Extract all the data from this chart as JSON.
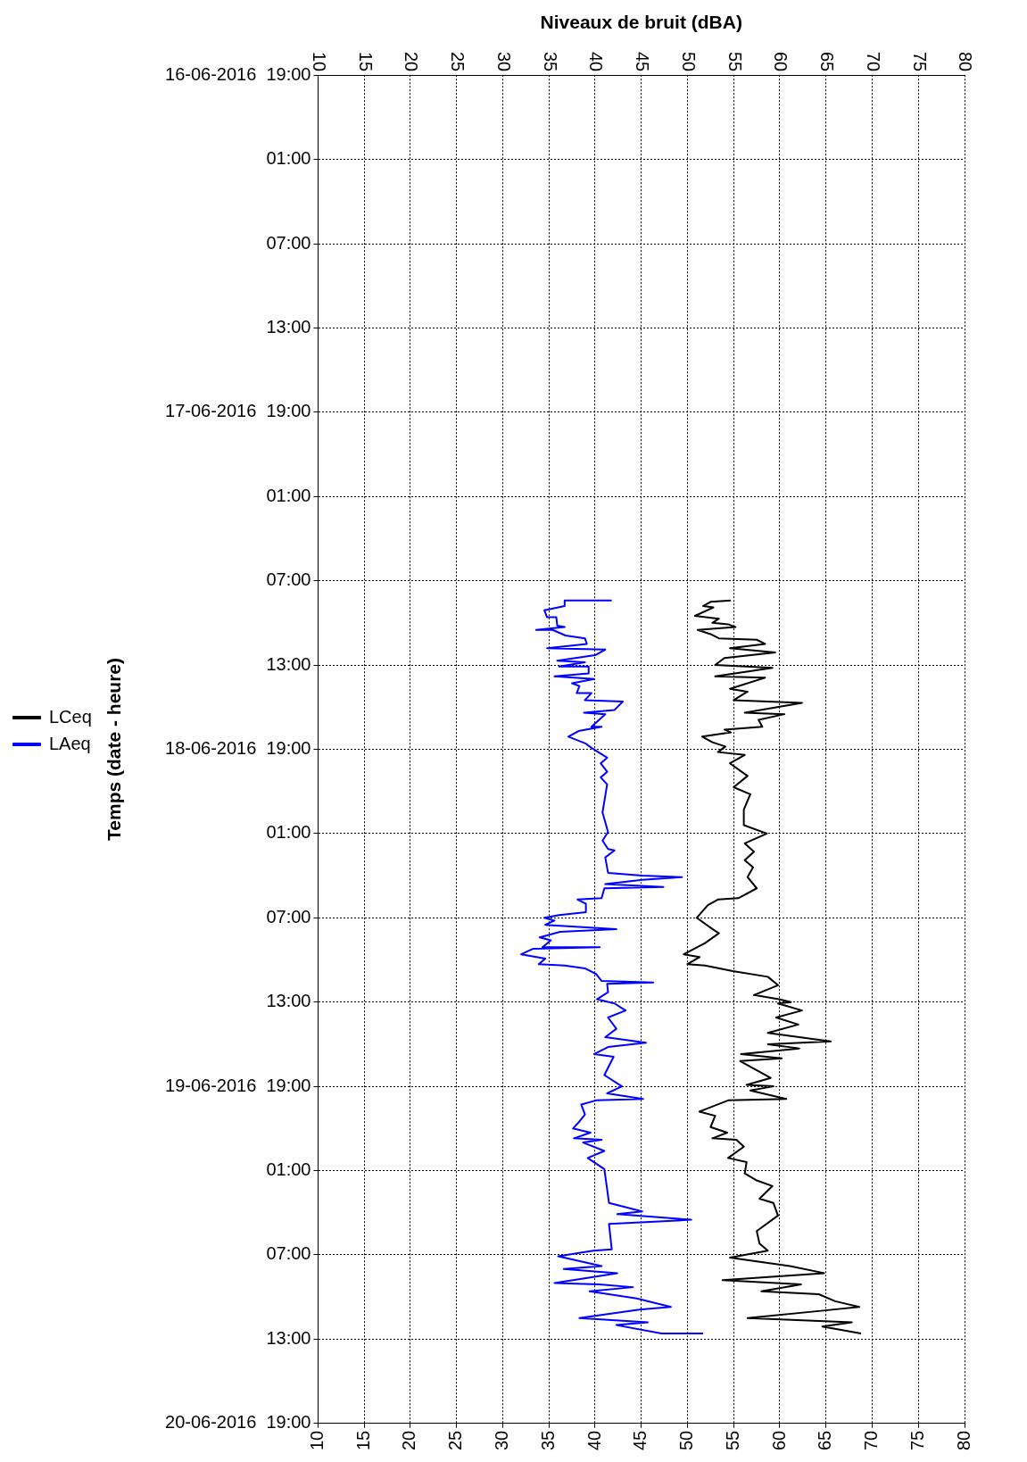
{
  "chart_data": {
    "type": "line",
    "xlabel": "Niveaux de bruit (dBA)",
    "ylabel": "Temps (date - heure)",
    "xlim": [
      10,
      80
    ],
    "xticks": [
      10,
      15,
      20,
      25,
      30,
      35,
      40,
      45,
      50,
      55,
      60,
      65,
      70,
      75,
      80
    ],
    "x2lim": [
      10,
      80
    ],
    "x2ticks": [
      10,
      15,
      20,
      25,
      30,
      35,
      40,
      45,
      50,
      55,
      60,
      65,
      70,
      75,
      80
    ],
    "ylim": [
      "2016-06-20T19:00",
      "2016-06-16T19:00"
    ],
    "yticks": [
      {
        "value": "2016-06-16T19:00",
        "label": "16-06-2016  19:00"
      },
      {
        "value": "2016-06-17T01:00",
        "label": "01:00"
      },
      {
        "value": "2016-06-17T07:00",
        "label": "07:00"
      },
      {
        "value": "2016-06-17T13:00",
        "label": "13:00"
      },
      {
        "value": "2016-06-17T19:00",
        "label": "17-06-2016  19:00"
      },
      {
        "value": "2016-06-18T01:00",
        "label": "01:00"
      },
      {
        "value": "2016-06-18T07:00",
        "label": "07:00"
      },
      {
        "value": "2016-06-18T13:00",
        "label": "13:00"
      },
      {
        "value": "2016-06-18T19:00",
        "label": "18-06-2016  19:00"
      },
      {
        "value": "2016-06-19T01:00",
        "label": "01:00"
      },
      {
        "value": "2016-06-19T07:00",
        "label": "07:00"
      },
      {
        "value": "2016-06-19T13:00",
        "label": "13:00"
      },
      {
        "value": "2016-06-19T19:00",
        "label": "19-06-2016  19:00"
      },
      {
        "value": "2016-06-20T01:00",
        "label": "01:00"
      },
      {
        "value": "2016-06-20T07:00",
        "label": "07:00"
      },
      {
        "value": "2016-06-20T13:00",
        "label": "13:00"
      },
      {
        "value": "2016-06-20T19:00",
        "label": "20-06-2016  19:00"
      }
    ],
    "orientation": "horizontal",
    "grid": true,
    "legend": "left",
    "marker": "none",
    "line_style": "solid",
    "series": [
      {
        "name": "LCeq",
        "color": "#000000",
        "values": [
          54.7,
          52.5,
          51.7,
          52.8,
          50.8,
          53.4,
          52.7,
          54.4,
          55.2,
          51.1,
          52.5,
          53.4,
          57.5,
          58.4,
          54.6,
          59.5,
          54.0,
          53.0,
          59.2,
          53.0,
          58.4,
          54.6,
          56.5,
          55.0,
          62.4,
          56.2,
          60.5,
          57.7,
          58.1,
          54.0,
          54.7,
          51.6,
          52.7,
          54.1,
          53.3,
          56.2,
          54.6,
          56.5,
          55.0,
          56.8,
          56.1,
          56.1,
          58.6,
          56.2,
          57.2,
          56.2,
          57.1,
          56.5,
          57.5,
          55.5,
          53.3,
          52.2,
          51.0,
          52.7,
          53.4,
          51.9,
          49.6,
          51.3,
          50.0,
          51.9,
          54.9,
          58.7,
          59.8,
          57.2,
          59.9,
          61.2,
          59.8,
          62.4,
          59.6,
          62.0,
          58.7,
          65.5,
          58.7,
          62.1,
          55.8,
          60.2,
          55.7,
          59.0,
          56.4,
          59.3,
          56.8,
          60.7,
          54.4,
          51.3,
          53.0,
          52.5,
          54.3,
          52.7,
          55.3,
          56.1,
          54.4,
          56.4,
          56.2,
          57.5,
          59.2,
          57.8,
          59.3,
          59.8,
          57.5,
          57.8,
          58.7,
          54.6,
          61.1,
          64.8,
          53.8,
          62.3,
          58.0,
          64.2,
          66.0,
          68.6,
          64.2,
          56.5,
          67.8,
          64.6,
          68.8
        ],
        "x": [
          "2016-06-18T08:24",
          "2016-06-18T08:30",
          "2016-06-18T08:48",
          "2016-06-18T08:54",
          "2016-06-18T09:30",
          "2016-06-18T09:42",
          "2016-06-18T10:00",
          "2016-06-18T10:06",
          "2016-06-18T10:18",
          "2016-06-18T10:30",
          "2016-06-18T10:48",
          "2016-06-18T11:06",
          "2016-06-18T11:12",
          "2016-06-18T11:30",
          "2016-06-18T11:48",
          "2016-06-18T12:06",
          "2016-06-18T12:30",
          "2016-06-18T13:00",
          "2016-06-18T13:12",
          "2016-06-18T13:48",
          "2016-06-18T13:54",
          "2016-06-18T14:42",
          "2016-06-18T14:54",
          "2016-06-18T15:30",
          "2016-06-18T15:42",
          "2016-06-18T16:24",
          "2016-06-18T16:30",
          "2016-06-18T16:54",
          "2016-06-18T17:24",
          "2016-06-18T17:36",
          "2016-06-18T17:48",
          "2016-06-18T18:06",
          "2016-06-18T18:30",
          "2016-06-18T18:48",
          "2016-06-18T19:12",
          "2016-06-18T19:24",
          "2016-06-18T20:00",
          "2016-06-18T20:54",
          "2016-06-18T21:42",
          "2016-06-18T22:12",
          "2016-06-18T23:18",
          "2016-06-19T00:24",
          "2016-06-19T01:00",
          "2016-06-19T01:42",
          "2016-06-19T02:18",
          "2016-06-19T02:54",
          "2016-06-19T03:24",
          "2016-06-19T04:06",
          "2016-06-19T04:54",
          "2016-06-19T05:36",
          "2016-06-19T05:42",
          "2016-06-19T06:06",
          "2016-06-19T07:00",
          "2016-06-19T07:48",
          "2016-06-19T08:06",
          "2016-06-19T08:48",
          "2016-06-19T09:36",
          "2016-06-19T09:48",
          "2016-06-19T10:18",
          "2016-06-19T10:24",
          "2016-06-19T10:48",
          "2016-06-19T11:12",
          "2016-06-19T11:48",
          "2016-06-19T12:30",
          "2016-06-19T12:48",
          "2016-06-19T13:00",
          "2016-06-19T13:06",
          "2016-06-19T13:36",
          "2016-06-19T14:06",
          "2016-06-19T14:36",
          "2016-06-19T15:12",
          "2016-06-19T15:48",
          "2016-06-19T16:00",
          "2016-06-19T16:18",
          "2016-06-19T16:42",
          "2016-06-19T17:00",
          "2016-06-19T17:12",
          "2016-06-19T18:24",
          "2016-06-19T18:54",
          "2016-06-19T19:00",
          "2016-06-19T19:18",
          "2016-06-19T19:54",
          "2016-06-19T20:00",
          "2016-06-19T20:48",
          "2016-06-19T21:06",
          "2016-06-19T21:54",
          "2016-06-19T22:18",
          "2016-06-19T22:42",
          "2016-06-19T22:48",
          "2016-06-19T23:18",
          "2016-06-20T00:06",
          "2016-06-20T00:24",
          "2016-06-20T01:12",
          "2016-06-20T01:42",
          "2016-06-20T02:06",
          "2016-06-20T03:00",
          "2016-06-20T03:18",
          "2016-06-20T04:12",
          "2016-06-20T05:18",
          "2016-06-20T06:12",
          "2016-06-20T06:42",
          "2016-06-20T07:12",
          "2016-06-20T07:48",
          "2016-06-20T08:18",
          "2016-06-20T08:48",
          "2016-06-20T09:06",
          "2016-06-20T09:36",
          "2016-06-20T09:48",
          "2016-06-20T10:18",
          "2016-06-20T10:42",
          "2016-06-20T11:00",
          "2016-06-20T11:30",
          "2016-06-20T11:48",
          "2016-06-20T12:06",
          "2016-06-20T12:36"
        ]
      },
      {
        "name": "LAeq",
        "color": "#0000ff",
        "values": [
          41.8,
          36.7,
          36.7,
          34.5,
          34.8,
          35.8,
          35.9,
          36.7,
          33.6,
          35.4,
          36.8,
          38.9,
          39.1,
          34.8,
          41.1,
          40.0,
          35.9,
          38.9,
          36.1,
          39.3,
          39.3,
          35.6,
          39.9,
          37.5,
          38.3,
          38.0,
          39.6,
          38.9,
          43.0,
          42.1,
          38.8,
          41.1,
          39.6,
          40.7,
          38.2,
          37.1,
          39.0,
          39.6,
          41.3,
          40.6,
          41.3,
          40.6,
          41.3,
          40.8,
          41.4,
          40.8,
          41.4,
          42.1,
          41.1,
          41.4,
          45.1,
          49.4,
          45.1,
          41.1,
          47.4,
          41.0,
          40.7,
          38.1,
          39.0,
          39.0,
          36.1,
          34.5,
          35.6,
          34.6,
          42.3,
          36.2,
          34.0,
          35.2,
          34.3,
          40.5,
          33.3,
          32.0,
          34.6,
          33.9,
          36.7,
          38.9,
          40.1,
          40.7,
          46.3,
          41.3,
          41.4,
          40.2,
          42.1,
          43.3,
          41.4,
          42.3,
          41.1,
          45.5,
          41.4,
          39.9,
          42.0,
          41.0,
          42.9,
          41.3,
          45.2,
          40.1,
          38.5,
          38.9,
          38.3,
          37.6,
          39.5,
          37.7,
          40.7,
          38.7,
          41.0,
          39.2,
          41.0,
          41.5,
          45.1,
          42.4,
          50.4,
          41.5,
          41.8,
          39.8,
          36.0,
          40.7,
          36.6,
          42.4,
          35.6,
          40.4,
          44.1,
          39.4,
          44.5,
          48.2,
          44.8,
          38.3,
          45.7,
          42.3,
          47.2,
          51.7
        ],
        "x": [
          "2016-06-18T08:24",
          "2016-06-18T08:24",
          "2016-06-18T08:48",
          "2016-06-18T09:06",
          "2016-06-18T09:36",
          "2016-06-18T09:36",
          "2016-06-18T10:12",
          "2016-06-18T10:18",
          "2016-06-18T10:30",
          "2016-06-18T10:30",
          "2016-06-18T10:54",
          "2016-06-18T11:06",
          "2016-06-18T11:30",
          "2016-06-18T11:48",
          "2016-06-18T11:54",
          "2016-06-18T12:18",
          "2016-06-18T12:42",
          "2016-06-18T12:48",
          "2016-06-18T13:06",
          "2016-06-18T13:06",
          "2016-06-18T13:36",
          "2016-06-18T13:48",
          "2016-06-18T14:00",
          "2016-06-18T14:18",
          "2016-06-18T14:30",
          "2016-06-18T15:00",
          "2016-06-18T15:00",
          "2016-06-18T15:30",
          "2016-06-18T15:36",
          "2016-06-18T16:12",
          "2016-06-18T16:24",
          "2016-06-18T16:30",
          "2016-06-18T17:24",
          "2016-06-18T17:24",
          "2016-06-18T17:42",
          "2016-06-18T18:06",
          "2016-06-18T18:36",
          "2016-06-18T18:54",
          "2016-06-18T19:36",
          "2016-06-18T20:00",
          "2016-06-18T20:36",
          "2016-06-18T21:00",
          "2016-06-18T21:30",
          "2016-06-18T23:30",
          "2016-06-19T00:54",
          "2016-06-19T01:30",
          "2016-06-19T02:06",
          "2016-06-19T02:12",
          "2016-06-19T02:42",
          "2016-06-19T03:48",
          "2016-06-19T04:00",
          "2016-06-19T04:06",
          "2016-06-19T04:18",
          "2016-06-19T04:36",
          "2016-06-19T04:48",
          "2016-06-19T04:54",
          "2016-06-19T05:36",
          "2016-06-19T05:42",
          "2016-06-19T06:00",
          "2016-06-19T06:36",
          "2016-06-19T06:48",
          "2016-06-19T07:00",
          "2016-06-19T07:12",
          "2016-06-19T07:30",
          "2016-06-19T07:48",
          "2016-06-19T08:00",
          "2016-06-19T08:24",
          "2016-06-19T08:36",
          "2016-06-19T09:06",
          "2016-06-19T09:06",
          "2016-06-19T09:12",
          "2016-06-19T09:36",
          "2016-06-19T09:54",
          "2016-06-19T10:18",
          "2016-06-19T10:24",
          "2016-06-19T10:36",
          "2016-06-19T11:00",
          "2016-06-19T11:30",
          "2016-06-19T11:36",
          "2016-06-19T11:42",
          "2016-06-19T12:18",
          "2016-06-19T12:48",
          "2016-06-19T13:06",
          "2016-06-19T13:36",
          "2016-06-19T14:06",
          "2016-06-19T14:54",
          "2016-06-19T15:30",
          "2016-06-19T15:54",
          "2016-06-19T16:12",
          "2016-06-19T16:42",
          "2016-06-19T16:54",
          "2016-06-19T18:12",
          "2016-06-19T19:00",
          "2016-06-19T19:30",
          "2016-06-19T19:54",
          "2016-06-19T20:00",
          "2016-06-19T20:18",
          "2016-06-19T21:00",
          "2016-06-19T21:30",
          "2016-06-19T22:00",
          "2016-06-19T22:18",
          "2016-06-19T22:42",
          "2016-06-19T22:48",
          "2016-06-19T23:00",
          "2016-06-19T23:36",
          "2016-06-20T00:06",
          "2016-06-20T00:54",
          "2016-06-20T03:18",
          "2016-06-20T03:54",
          "2016-06-20T04:06",
          "2016-06-20T04:30",
          "2016-06-20T04:48",
          "2016-06-20T06:36",
          "2016-06-20T06:42",
          "2016-06-20T07:06",
          "2016-06-20T07:48",
          "2016-06-20T08:00",
          "2016-06-20T08:18",
          "2016-06-20T09:00",
          "2016-06-20T09:06",
          "2016-06-20T09:18",
          "2016-06-20T09:36",
          "2016-06-20T10:06",
          "2016-06-20T10:42",
          "2016-06-20T10:54",
          "2016-06-20T11:30",
          "2016-06-20T11:48",
          "2016-06-20T12:00",
          "2016-06-20T12:36",
          "2016-06-20T12:36"
        ]
      }
    ]
  }
}
